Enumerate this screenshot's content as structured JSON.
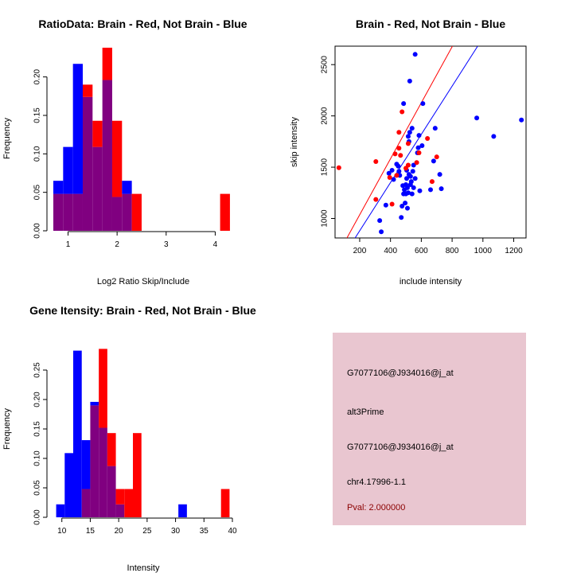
{
  "colors": {
    "red": "#ff0000",
    "blue": "#0000ff",
    "overlap": "#800080",
    "panel": "#e9c6d0",
    "pval": "#8b0000"
  },
  "info": {
    "probe_id": "G7077106@J934016@j_at",
    "event_type": "alt3Prime",
    "gene_id": "G7077106@J934016@j_at",
    "location": "chr4.17996-1.1",
    "pval": "Pval: 2.000000"
  },
  "chart_data": [
    {
      "type": "bar",
      "title": "RatioData: Brain - Red, Not Brain - Blue",
      "xlabel": "Log2 Ratio Skip/Include",
      "ylabel": "Frequency",
      "xlim": [
        0.7,
        4.35
      ],
      "ylim": [
        0,
        0.24
      ],
      "xticks": [
        1,
        2,
        3,
        4
      ],
      "xtick_labels": [
        "1",
        "2",
        "3",
        "4"
      ],
      "yticks": [
        0.0,
        0.05,
        0.1,
        0.15,
        0.2
      ],
      "ytick_labels": [
        "0.00",
        "0.05",
        "0.10",
        "0.15",
        "0.20"
      ],
      "bin_edges": [
        0.7,
        0.9,
        1.1,
        1.3,
        1.5,
        1.7,
        1.9,
        2.1,
        2.3,
        2.5,
        4.1,
        4.3
      ],
      "series": [
        {
          "name": "Not Brain",
          "color": "blue",
          "values": [
            0.065,
            0.109,
            0.217,
            0.174,
            0.109,
            0.196,
            0.044,
            0.065,
            0,
            0,
            0
          ]
        },
        {
          "name": "Brain",
          "color": "red",
          "values": [
            0.048,
            0.048,
            0.048,
            0.19,
            0.143,
            0.238,
            0.143,
            0.048,
            0.048,
            0,
            0.048
          ]
        }
      ]
    },
    {
      "type": "scatter",
      "title": "Brain - Red, Not Brain - Blue",
      "xlabel": "include intensity",
      "ylabel": "skip intensity",
      "xlim": [
        40,
        1280
      ],
      "ylim": [
        810,
        2680
      ],
      "xticks": [
        200,
        400,
        600,
        800,
        1000,
        1200
      ],
      "xtick_labels": [
        "200",
        "400",
        "600",
        "800",
        "1000",
        "1200"
      ],
      "yticks": [
        1000,
        1500,
        2000,
        2500
      ],
      "ytick_labels": [
        "1000",
        "1500",
        "2000",
        "2500"
      ],
      "red_points": [
        [
          65,
          1495
        ],
        [
          305,
          1555
        ],
        [
          305,
          1185
        ],
        [
          395,
          1400
        ],
        [
          410,
          1140
        ],
        [
          440,
          1420
        ],
        [
          455,
          1840
        ],
        [
          465,
          1615
        ],
        [
          455,
          1685
        ],
        [
          475,
          2040
        ],
        [
          500,
          1490
        ],
        [
          515,
          1520
        ],
        [
          515,
          1730
        ],
        [
          570,
          1545
        ],
        [
          585,
          1640
        ],
        [
          640,
          1780
        ],
        [
          670,
          1360
        ],
        [
          700,
          1600
        ],
        [
          430,
          1630
        ]
      ],
      "blue_points": [
        [
          330,
          980
        ],
        [
          340,
          870
        ],
        [
          370,
          1130
        ],
        [
          390,
          1440
        ],
        [
          410,
          1470
        ],
        [
          420,
          1380
        ],
        [
          440,
          1530
        ],
        [
          450,
          1510
        ],
        [
          455,
          1460
        ],
        [
          460,
          1420
        ],
        [
          470,
          1010
        ],
        [
          475,
          1120
        ],
        [
          480,
          1320
        ],
        [
          485,
          1240
        ],
        [
          485,
          2120
        ],
        [
          490,
          1280
        ],
        [
          495,
          1150
        ],
        [
          500,
          1240
        ],
        [
          500,
          1330
        ],
        [
          505,
          1390
        ],
        [
          505,
          1470
        ],
        [
          510,
          1100
        ],
        [
          510,
          1300
        ],
        [
          515,
          1250
        ],
        [
          515,
          1800
        ],
        [
          520,
          1430
        ],
        [
          520,
          1750
        ],
        [
          525,
          2340
        ],
        [
          525,
          1840
        ],
        [
          530,
          1330
        ],
        [
          530,
          1410
        ],
        [
          535,
          1360
        ],
        [
          540,
          1240
        ],
        [
          540,
          1880
        ],
        [
          545,
          1460
        ],
        [
          550,
          1300
        ],
        [
          550,
          1520
        ],
        [
          560,
          1390
        ],
        [
          560,
          2600
        ],
        [
          575,
          1640
        ],
        [
          580,
          1690
        ],
        [
          585,
          1810
        ],
        [
          590,
          1270
        ],
        [
          605,
          1710
        ],
        [
          610,
          2120
        ],
        [
          660,
          1280
        ],
        [
          680,
          1560
        ],
        [
          690,
          1880
        ],
        [
          720,
          1430
        ],
        [
          730,
          1290
        ],
        [
          960,
          1980
        ],
        [
          1070,
          1800
        ],
        [
          1250,
          1960
        ]
      ],
      "red_line": {
        "intercept": 490,
        "slope": 2.73
      },
      "blue_line": {
        "intercept": 410,
        "slope": 2.35
      }
    },
    {
      "type": "bar",
      "title": "Gene Itensity: Brain - Red, Not Brain - Blue",
      "xlabel": "Intensity",
      "ylabel": "Frequency",
      "xlim": [
        8.5,
        40
      ],
      "ylim": [
        0,
        0.3
      ],
      "xticks": [
        10,
        15,
        20,
        25,
        30,
        35,
        40
      ],
      "xtick_labels": [
        "10",
        "15",
        "20",
        "25",
        "30",
        "35",
        "40"
      ],
      "yticks": [
        0.0,
        0.05,
        0.1,
        0.15,
        0.2,
        0.25
      ],
      "ytick_labels": [
        "0.00",
        "0.05",
        "0.10",
        "0.15",
        "0.20",
        "0.25"
      ],
      "bin_edges": [
        9,
        10.5,
        12,
        13.5,
        15,
        16.5,
        18,
        19.5,
        21,
        22.5,
        24,
        30.5,
        32,
        38,
        39.5
      ],
      "series": [
        {
          "name": "Not Brain",
          "color": "blue",
          "values": [
            0.022,
            0.109,
            0.283,
            0.131,
            0.196,
            0.152,
            0.087,
            0.022,
            0,
            0,
            0,
            0.022,
            0,
            0
          ]
        },
        {
          "name": "Brain",
          "color": "red",
          "values": [
            0,
            0,
            0,
            0.048,
            0.19,
            0.286,
            0.143,
            0.048,
            0.048,
            0.143,
            0,
            0,
            0,
            0.048
          ]
        }
      ]
    }
  ]
}
